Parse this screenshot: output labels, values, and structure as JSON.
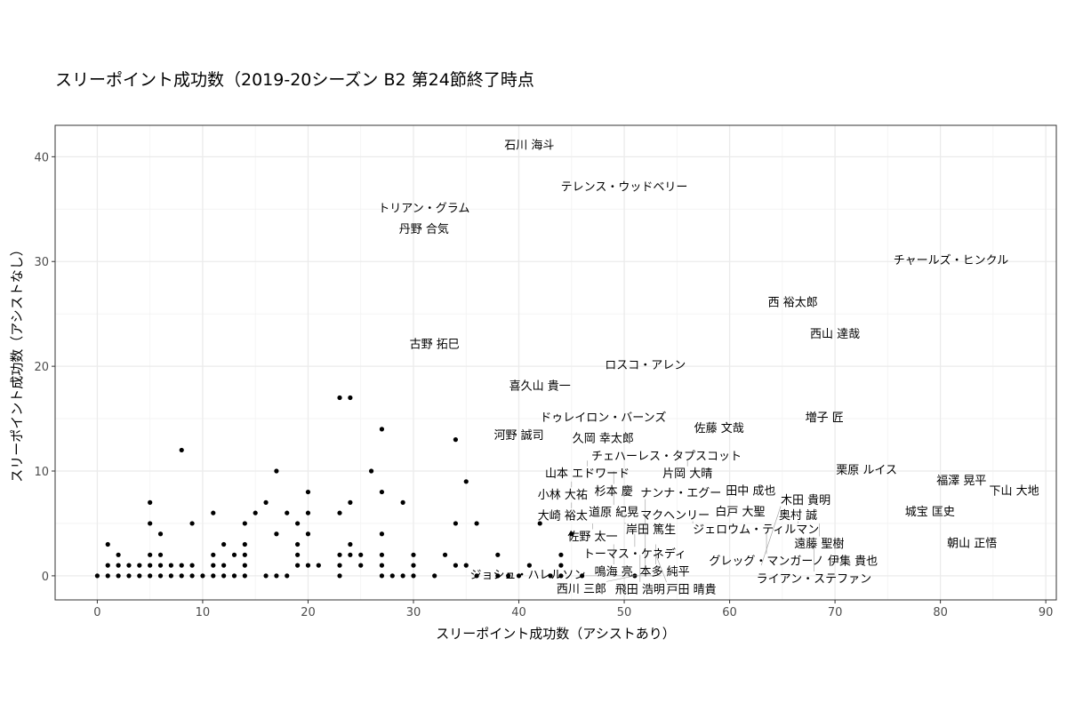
{
  "chart_data": {
    "type": "scatter",
    "title": "スリーポイント成功数（2019-20シーズン B2 第24節終了時点",
    "xlabel": "スリーポイント成功数（アシストあり）",
    "ylabel": "スリーポイント成功数（アシストなし）",
    "xlim": [
      -4,
      91
    ],
    "ylim": [
      -2.3,
      43
    ],
    "xticks": [
      0,
      10,
      20,
      30,
      40,
      50,
      60,
      70,
      80,
      90
    ],
    "yticks": [
      0,
      10,
      20,
      30,
      40
    ],
    "grid": true,
    "points": [
      [
        0,
        0
      ],
      [
        1,
        0
      ],
      [
        2,
        0
      ],
      [
        3,
        0
      ],
      [
        4,
        0
      ],
      [
        5,
        0
      ],
      [
        6,
        0
      ],
      [
        7,
        0
      ],
      [
        8,
        0
      ],
      [
        9,
        0
      ],
      [
        10,
        0
      ],
      [
        11,
        0
      ],
      [
        12,
        0
      ],
      [
        13,
        0
      ],
      [
        14,
        0
      ],
      [
        16,
        0
      ],
      [
        17,
        0
      ],
      [
        18,
        0
      ],
      [
        1,
        1
      ],
      [
        2,
        1
      ],
      [
        3,
        1
      ],
      [
        4,
        1
      ],
      [
        5,
        1
      ],
      [
        6,
        1
      ],
      [
        7,
        1
      ],
      [
        8,
        1
      ],
      [
        9,
        1
      ],
      [
        11,
        1
      ],
      [
        12,
        1
      ],
      [
        14,
        1
      ],
      [
        19,
        1
      ],
      [
        20,
        1
      ],
      [
        21,
        1
      ],
      [
        2,
        2
      ],
      [
        5,
        2
      ],
      [
        6,
        2
      ],
      [
        11,
        2
      ],
      [
        13,
        2
      ],
      [
        14,
        2
      ],
      [
        19,
        2
      ],
      [
        1,
        3
      ],
      [
        12,
        3
      ],
      [
        14,
        3
      ],
      [
        19,
        3
      ],
      [
        6,
        4
      ],
      [
        17,
        4
      ],
      [
        20,
        4
      ],
      [
        5,
        5
      ],
      [
        9,
        5
      ],
      [
        14,
        5
      ],
      [
        19,
        5
      ],
      [
        11,
        6
      ],
      [
        15,
        6
      ],
      [
        18,
        6
      ],
      [
        20,
        6
      ],
      [
        5,
        7
      ],
      [
        16,
        7
      ],
      [
        20,
        8
      ],
      [
        17,
        10
      ],
      [
        8,
        12
      ],
      [
        23,
        0
      ],
      [
        27,
        0
      ],
      [
        28,
        0
      ],
      [
        29,
        0
      ],
      [
        30,
        0
      ],
      [
        32,
        0
      ],
      [
        36,
        0
      ],
      [
        38,
        0
      ],
      [
        39,
        0
      ],
      [
        40,
        0
      ],
      [
        43,
        0
      ],
      [
        44,
        0
      ],
      [
        46,
        0
      ],
      [
        51,
        0
      ],
      [
        23,
        1
      ],
      [
        25,
        1
      ],
      [
        27,
        1
      ],
      [
        30,
        1
      ],
      [
        34,
        1
      ],
      [
        35,
        1
      ],
      [
        41,
        1
      ],
      [
        44,
        1
      ],
      [
        23,
        2
      ],
      [
        24,
        2
      ],
      [
        25,
        2
      ],
      [
        27,
        2
      ],
      [
        30,
        2
      ],
      [
        33,
        2
      ],
      [
        38,
        2
      ],
      [
        44,
        2
      ],
      [
        24,
        3
      ],
      [
        27,
        4
      ],
      [
        45,
        4
      ],
      [
        34,
        5
      ],
      [
        36,
        5
      ],
      [
        42,
        5
      ],
      [
        23,
        6
      ],
      [
        24,
        7
      ],
      [
        29,
        7
      ],
      [
        27,
        8
      ],
      [
        35,
        9
      ],
      [
        26,
        10
      ],
      [
        34,
        13
      ],
      [
        27,
        14
      ],
      [
        23,
        17
      ],
      [
        24,
        17
      ]
    ],
    "labels": [
      {
        "name": "石川 海斗",
        "x": 41,
        "y": 41
      },
      {
        "name": "テレンス・ウッドベリー",
        "x": 50,
        "y": 37
      },
      {
        "name": "トリアン・グラム",
        "x": 31,
        "y": 35
      },
      {
        "name": "丹野 合気",
        "x": 31,
        "y": 33
      },
      {
        "name": "チャールズ・ヒンクル",
        "x": 81,
        "y": 30
      },
      {
        "name": "西 裕太郎",
        "x": 66,
        "y": 26
      },
      {
        "name": "西山 達哉",
        "x": 70,
        "y": 23
      },
      {
        "name": "古野 拓巳",
        "x": 32,
        "y": 22
      },
      {
        "name": "ロスコ・アレン",
        "x": 52,
        "y": 20
      },
      {
        "name": "喜久山 貴一",
        "x": 42,
        "y": 18
      },
      {
        "name": "ドゥレイロン・バーンズ",
        "x": 48,
        "y": 15
      },
      {
        "name": "増子 匠",
        "x": 69,
        "y": 15
      },
      {
        "name": "河野 誠司",
        "x": 40,
        "y": 14
      },
      {
        "name": "佐藤 文哉",
        "x": 59,
        "y": 14
      },
      {
        "name": "久岡 幸太郎",
        "x": 48,
        "y": 13
      },
      {
        "name": "チェハーレス・タプスコット",
        "x": 54,
        "y": 12
      },
      {
        "name": "山本 エドワード",
        "x": 46.5,
        "y": 11
      },
      {
        "name": "片岡 大晴",
        "x": 56,
        "y": 11
      },
      {
        "name": "杉本 慶",
        "x": 49,
        "y": 10
      },
      {
        "name": "栗原 ルイス",
        "x": 73,
        "y": 10
      },
      {
        "name": "小林 大祐",
        "x": 45,
        "y": 9
      },
      {
        "name": "福澤 晃平",
        "x": 82,
        "y": 9
      },
      {
        "name": "道原 紀晃",
        "x": 49,
        "y": 8
      },
      {
        "name": "田中 成也",
        "x": 62,
        "y": 8
      },
      {
        "name": "下山 大地",
        "x": 87,
        "y": 8
      },
      {
        "name": "大崎 裕太",
        "x": 45,
        "y": 7
      },
      {
        "name": "白戸 大聖",
        "x": 61,
        "y": 6
      },
      {
        "name": "城宝 匡史",
        "x": 79,
        "y": 6
      },
      {
        "name": "佐野 太一",
        "x": 47,
        "y": 5
      },
      {
        "name": "岸田 篤生",
        "x": 50,
        "y": 5
      },
      {
        "name": "マクヘンリー",
        "x": 56.5,
        "y": 5
      },
      {
        "name": "ジェロウム・ティルマン",
        "x": 62.5,
        "y": 5
      },
      {
        "name": "奥村 誠",
        "x": 66.5,
        "y": 5
      },
      {
        "name": "遠藤 聖樹",
        "x": 68.5,
        "y": 5
      },
      {
        "name": "トーマス・ケネディ",
        "x": 51,
        "y": 4
      },
      {
        "name": "グレッグ・マンガーノ",
        "x": 63.5,
        "y": 4
      },
      {
        "name": "鳴海 亮",
        "x": 49,
        "y": 3
      },
      {
        "name": "本多 純平",
        "x": 53,
        "y": 3
      },
      {
        "name": "ライアン・ステファン",
        "x": 68,
        "y": 3
      },
      {
        "name": "朝山 正悟",
        "x": 83,
        "y": 3
      },
      {
        "name": "飛田 浩明",
        "x": 51.5,
        "y": 2
      },
      {
        "name": "戸田 晴貴",
        "x": 53,
        "y": 2
      },
      {
        "name": "伊集 貴也",
        "x": 70,
        "y": 2
      },
      {
        "name": "ナンナ・エグー",
        "x": 52,
        "y": 1
      },
      {
        "name": "木田 貴明",
        "x": 63,
        "y": 1
      },
      {
        "name": "西川 三郎",
        "x": 51,
        "y": 0
      },
      {
        "name": "ジョシュ・ハレルソン",
        "x": 53.5,
        "y": 0
      }
    ]
  }
}
